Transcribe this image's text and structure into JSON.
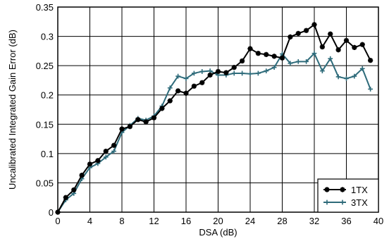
{
  "chart_data": {
    "type": "line",
    "title": "",
    "xlabel": "DSA (dB)",
    "ylabel": "Uncalibrated Integrated Gain Error (dB)",
    "xlim": [
      0,
      40
    ],
    "ylim": [
      0,
      0.35
    ],
    "x_ticks": [
      "0",
      "4",
      "8",
      "12",
      "16",
      "20",
      "24",
      "28",
      "32",
      "36",
      "40"
    ],
    "y_ticks": [
      "0",
      "0.05",
      "0.1",
      "0.15",
      "0.2",
      "0.25",
      "0.3",
      "0.35"
    ],
    "grid": true,
    "legend_position": "bottom-right",
    "x": [
      0,
      1,
      2,
      3,
      4,
      5,
      6,
      7,
      8,
      9,
      10,
      11,
      12,
      13,
      14,
      15,
      16,
      17,
      18,
      19,
      20,
      21,
      22,
      23,
      24,
      25,
      26,
      27,
      28,
      29,
      30,
      31,
      32,
      33,
      34,
      35,
      36,
      37,
      38,
      39
    ],
    "series": [
      {
        "name": "1TX",
        "color": "#000000",
        "marker": "asterisk",
        "values": [
          0,
          0.025,
          0.038,
          0.063,
          0.082,
          0.088,
          0.104,
          0.114,
          0.142,
          0.146,
          0.158,
          0.154,
          0.161,
          0.177,
          0.19,
          0.207,
          0.203,
          0.215,
          0.221,
          0.234,
          0.24,
          0.238,
          0.247,
          0.258,
          0.279,
          0.271,
          0.269,
          0.266,
          0.263,
          0.299,
          0.305,
          0.31,
          0.32,
          0.282,
          0.304,
          0.277,
          0.293,
          0.281,
          0.286,
          0.259
        ]
      },
      {
        "name": "3TX",
        "color": "#2e6b7a",
        "marker": "plus",
        "values": [
          0,
          0.021,
          0.032,
          0.057,
          0.076,
          0.083,
          0.094,
          0.104,
          0.136,
          0.148,
          0.16,
          0.157,
          0.164,
          0.181,
          0.212,
          0.232,
          0.228,
          0.237,
          0.24,
          0.241,
          0.234,
          0.234,
          0.237,
          0.237,
          0.236,
          0.237,
          0.241,
          0.247,
          0.27,
          0.254,
          0.257,
          0.257,
          0.271,
          0.241,
          0.262,
          0.231,
          0.228,
          0.232,
          0.245,
          0.21
        ]
      }
    ]
  }
}
